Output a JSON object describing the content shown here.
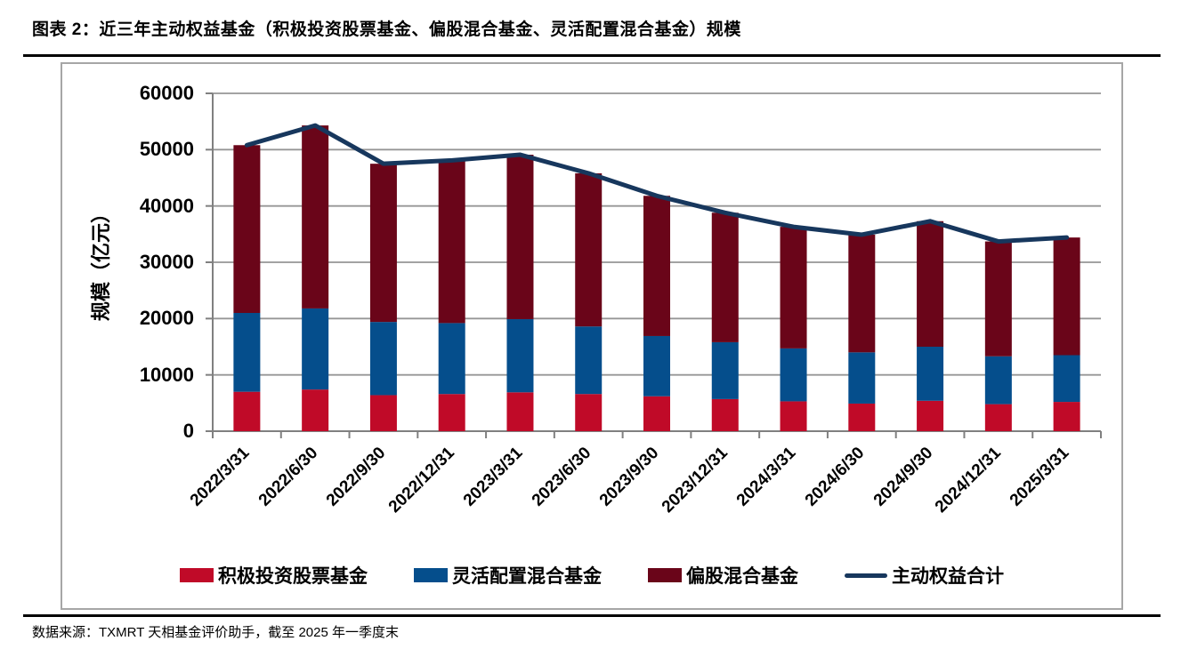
{
  "header": {
    "title": "图表 2：近三年主动权益基金（积极投资股票基金、偏股混合基金、灵活配置混合基金）规模"
  },
  "footer": {
    "source": "数据来源：TXMRT 天相基金评价助手，截至 2025 年一季度末"
  },
  "chart_data": {
    "type": "bar",
    "subtype": "stacked-bar-with-line-overlay",
    "title": "",
    "xlabel": "",
    "ylabel": "规模（亿元）",
    "ylim": [
      0,
      60000
    ],
    "ytick_interval": 10000,
    "yticks": [
      {
        "v": 0,
        "label": "0"
      },
      {
        "v": 10000,
        "label": "10000"
      },
      {
        "v": 20000,
        "label": "20000"
      },
      {
        "v": 30000,
        "label": "30000"
      },
      {
        "v": 40000,
        "label": "40000"
      },
      {
        "v": 50000,
        "label": "50000"
      },
      {
        "v": 60000,
        "label": "60000"
      }
    ],
    "grid": true,
    "legend_position": "bottom",
    "categories": [
      "2022/3/31",
      "2022/6/30",
      "2022/9/30",
      "2022/12/31",
      "2023/3/31",
      "2023/6/30",
      "2023/9/30",
      "2023/12/31",
      "2024/3/31",
      "2024/6/30",
      "2024/9/30",
      "2024/12/31",
      "2025/3/31"
    ],
    "series": [
      {
        "name": "积极投资股票基金",
        "type": "bar",
        "color": "#C00A28",
        "values": [
          7000,
          7400,
          6400,
          6600,
          6900,
          6600,
          6200,
          5700,
          5300,
          4900,
          5400,
          4800,
          5200
        ]
      },
      {
        "name": "灵活配置混合基金",
        "type": "bar",
        "color": "#054E8C",
        "values": [
          14000,
          14400,
          13000,
          12600,
          13000,
          12000,
          10700,
          10100,
          9400,
          9100,
          9600,
          8500,
          8300
        ]
      },
      {
        "name": "偏股混合基金",
        "type": "bar",
        "color": "#6A0519",
        "values": [
          29800,
          32500,
          28100,
          28900,
          29200,
          27200,
          24900,
          23000,
          21600,
          20900,
          22300,
          20400,
          20900
        ]
      },
      {
        "name": "主动权益合计",
        "type": "line",
        "color": "#17375D",
        "values": [
          50800,
          54300,
          47500,
          48100,
          49100,
          45800,
          41800,
          38800,
          36300,
          34900,
          37300,
          33700,
          34400
        ]
      }
    ],
    "colors": {
      "grid": "#969696",
      "axis": "#808080",
      "box_border": "#A6A6A6"
    }
  }
}
